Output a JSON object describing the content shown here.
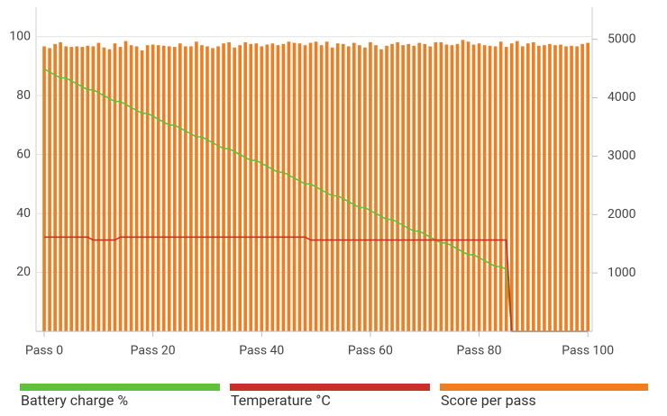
{
  "chart_data": {
    "type": "combo",
    "x": [
      0,
      1,
      2,
      3,
      4,
      5,
      6,
      7,
      8,
      9,
      10,
      11,
      12,
      13,
      14,
      15,
      16,
      17,
      18,
      19,
      20,
      21,
      22,
      23,
      24,
      25,
      26,
      27,
      28,
      29,
      30,
      31,
      32,
      33,
      34,
      35,
      36,
      37,
      38,
      39,
      40,
      41,
      42,
      43,
      44,
      45,
      46,
      47,
      48,
      49,
      50,
      51,
      52,
      53,
      54,
      55,
      56,
      57,
      58,
      59,
      60,
      61,
      62,
      63,
      64,
      65,
      66,
      67,
      68,
      69,
      70,
      71,
      72,
      73,
      74,
      75,
      76,
      77,
      78,
      79,
      80,
      81,
      82,
      83,
      84,
      85,
      86,
      87,
      88,
      89,
      90,
      91,
      92,
      93,
      94,
      95,
      96,
      97,
      98,
      99,
      100
    ],
    "series": [
      {
        "name": "Battery charge %",
        "type": "line",
        "color": "#5ec23a",
        "axis": "y",
        "values": [
          89,
          88,
          87,
          86,
          86,
          85,
          84,
          83,
          82,
          82,
          81,
          80,
          79,
          78,
          78,
          77,
          76,
          75,
          74,
          74,
          73,
          72,
          71,
          70,
          70,
          69,
          68,
          67,
          66,
          66,
          65,
          64,
          63,
          62,
          62,
          61,
          60,
          59,
          58,
          58,
          57,
          56,
          55,
          54,
          54,
          53,
          52,
          51,
          50,
          50,
          49,
          48,
          47,
          46,
          46,
          45,
          44,
          43,
          42,
          42,
          41,
          40,
          39,
          38,
          38,
          37,
          36,
          35,
          34,
          34,
          33,
          32,
          31,
          30,
          30,
          29,
          28,
          27,
          26,
          26,
          25,
          24,
          23,
          22,
          22,
          21,
          0,
          0,
          0,
          0,
          0,
          0,
          0,
          0,
          0,
          0,
          0,
          0,
          0,
          0,
          0
        ]
      },
      {
        "name": "Temperature °C",
        "type": "line",
        "color": "#c8302c",
        "axis": "y",
        "values": [
          32,
          32,
          32,
          32,
          32,
          32,
          32,
          32,
          32,
          31,
          31,
          31,
          31,
          31,
          32,
          32,
          32,
          32,
          32,
          32,
          32,
          32,
          32,
          32,
          32,
          32,
          32,
          32,
          32,
          32,
          32,
          32,
          32,
          32,
          32,
          32,
          32,
          32,
          32,
          32,
          32,
          32,
          32,
          32,
          32,
          32,
          32,
          32,
          32,
          31,
          31,
          31,
          31,
          31,
          31,
          31,
          31,
          31,
          31,
          31,
          31,
          31,
          31,
          31,
          31,
          31,
          31,
          31,
          31,
          31,
          31,
          31,
          31,
          31,
          31,
          31,
          31,
          31,
          31,
          31,
          31,
          31,
          31,
          31,
          31,
          31,
          0,
          0,
          0,
          0,
          0,
          0,
          0,
          0,
          0,
          0,
          0,
          0,
          0,
          0,
          0
        ]
      },
      {
        "name": "Score per pass",
        "type": "bar",
        "color": "#f07d1f",
        "axis": "y2",
        "values": [
          4880,
          4850,
          4920,
          4950,
          4880,
          4870,
          4880,
          4870,
          4890,
          4880,
          4940,
          4860,
          4830,
          4930,
          4870,
          4970,
          4900,
          4880,
          4810,
          4900,
          4910,
          4900,
          4890,
          4880,
          4870,
          4930,
          4880,
          4880,
          4960,
          4900,
          4880,
          4850,
          4880,
          4930,
          4950,
          4860,
          4900,
          4950,
          4920,
          4930,
          4880,
          4910,
          4930,
          4900,
          4920,
          4960,
          4940,
          4930,
          4900,
          4940,
          4960,
          4900,
          4960,
          4860,
          4930,
          4920,
          4880,
          4940,
          4900,
          4860,
          4950,
          4900,
          4830,
          4890,
          4920,
          4950,
          4900,
          4920,
          4890,
          4940,
          4920,
          4880,
          4950,
          4950,
          4910,
          4900,
          4920,
          4990,
          4960,
          4910,
          4930,
          4900,
          4890,
          4880,
          4960,
          4870,
          4930,
          4970,
          4880,
          4930,
          4950,
          4890,
          4900,
          4920,
          4900,
          4910,
          4880,
          4890,
          4880,
          4920,
          4940
        ]
      }
    ],
    "xlim": [
      -1.5,
      100.8
    ],
    "xticks": [
      {
        "value": 0,
        "label": "Pass 0"
      },
      {
        "value": 20,
        "label": "Pass 20"
      },
      {
        "value": 40,
        "label": "Pass 40"
      },
      {
        "value": 60,
        "label": "Pass 60"
      },
      {
        "value": 80,
        "label": "Pass 80"
      },
      {
        "value": 100,
        "label": "Pass 100"
      }
    ],
    "ylim": [
      0,
      110
    ],
    "yticks": [
      20,
      40,
      60,
      80,
      100
    ],
    "y2lim": [
      0,
      5550
    ],
    "y2ticks": [
      1000,
      2000,
      3000,
      4000,
      5000
    ],
    "grid": true
  }
}
